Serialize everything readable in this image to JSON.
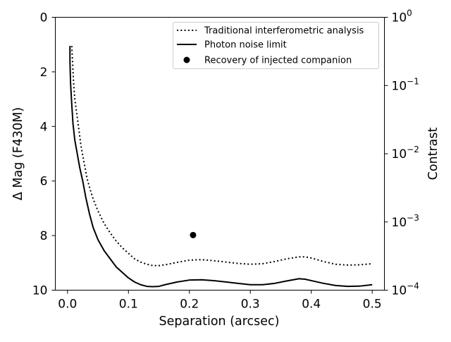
{
  "chart_data": {
    "type": "line",
    "xlabel": "Separation (arcsec)",
    "ylabel": "Δ Mag (F430M)",
    "ylabel_right": "Contrast",
    "xlim": [
      -0.02,
      0.52
    ],
    "ylim": [
      10,
      0
    ],
    "x_ticks": [
      0.0,
      0.1,
      0.2,
      0.3,
      0.4,
      0.5
    ],
    "x_tick_labels": [
      "0.0",
      "0.1",
      "0.2",
      "0.3",
      "0.4",
      "0.5"
    ],
    "y_ticks": [
      0,
      2,
      4,
      6,
      8,
      10
    ],
    "y_tick_labels": [
      "0",
      "2",
      "4",
      "6",
      "8",
      "10"
    ],
    "right_ticks": [
      {
        "value": 0,
        "base": "10",
        "exp": "0"
      },
      {
        "value": 2.5,
        "base": "10",
        "exp": "−1"
      },
      {
        "value": 5,
        "base": "10",
        "exp": "−2"
      },
      {
        "value": 7.5,
        "base": "10",
        "exp": "−3"
      },
      {
        "value": 10,
        "base": "10",
        "exp": "−4"
      }
    ],
    "legend_position": "upper right",
    "series": [
      {
        "name": "Traditional interferometric analysis",
        "style": "dotted",
        "color": "#000000",
        "points": [
          [
            0.007,
            1.05
          ],
          [
            0.008,
            1.5
          ],
          [
            0.01,
            2.4
          ],
          [
            0.012,
            3.0
          ],
          [
            0.015,
            3.5
          ],
          [
            0.018,
            4.0
          ],
          [
            0.022,
            4.7
          ],
          [
            0.027,
            5.3
          ],
          [
            0.032,
            5.9
          ],
          [
            0.037,
            6.3
          ],
          [
            0.042,
            6.65
          ],
          [
            0.05,
            7.1
          ],
          [
            0.06,
            7.55
          ],
          [
            0.07,
            7.9
          ],
          [
            0.08,
            8.2
          ],
          [
            0.09,
            8.45
          ],
          [
            0.1,
            8.65
          ],
          [
            0.11,
            8.85
          ],
          [
            0.12,
            8.97
          ],
          [
            0.13,
            9.05
          ],
          [
            0.14,
            9.1
          ],
          [
            0.15,
            9.1
          ],
          [
            0.16,
            9.07
          ],
          [
            0.18,
            8.98
          ],
          [
            0.2,
            8.9
          ],
          [
            0.22,
            8.88
          ],
          [
            0.24,
            8.92
          ],
          [
            0.26,
            8.97
          ],
          [
            0.28,
            9.02
          ],
          [
            0.3,
            9.05
          ],
          [
            0.32,
            9.03
          ],
          [
            0.34,
            8.95
          ],
          [
            0.36,
            8.85
          ],
          [
            0.38,
            8.78
          ],
          [
            0.39,
            8.78
          ],
          [
            0.4,
            8.82
          ],
          [
            0.42,
            8.95
          ],
          [
            0.44,
            9.05
          ],
          [
            0.46,
            9.08
          ],
          [
            0.48,
            9.07
          ],
          [
            0.5,
            9.03
          ]
        ]
      },
      {
        "name": "Photon noise limit",
        "style": "solid",
        "color": "#000000",
        "points": [
          [
            0.004,
            1.05
          ],
          [
            0.004,
            1.6
          ],
          [
            0.005,
            2.4
          ],
          [
            0.007,
            3.2
          ],
          [
            0.009,
            3.9
          ],
          [
            0.012,
            4.5
          ],
          [
            0.016,
            5.0
          ],
          [
            0.02,
            5.5
          ],
          [
            0.025,
            6.0
          ],
          [
            0.03,
            6.6
          ],
          [
            0.036,
            7.2
          ],
          [
            0.042,
            7.7
          ],
          [
            0.05,
            8.15
          ],
          [
            0.06,
            8.55
          ],
          [
            0.07,
            8.85
          ],
          [
            0.08,
            9.15
          ],
          [
            0.09,
            9.35
          ],
          [
            0.1,
            9.55
          ],
          [
            0.11,
            9.7
          ],
          [
            0.12,
            9.8
          ],
          [
            0.13,
            9.86
          ],
          [
            0.14,
            9.87
          ],
          [
            0.15,
            9.86
          ],
          [
            0.16,
            9.8
          ],
          [
            0.18,
            9.7
          ],
          [
            0.2,
            9.63
          ],
          [
            0.22,
            9.62
          ],
          [
            0.24,
            9.65
          ],
          [
            0.26,
            9.7
          ],
          [
            0.28,
            9.75
          ],
          [
            0.3,
            9.8
          ],
          [
            0.32,
            9.8
          ],
          [
            0.34,
            9.75
          ],
          [
            0.36,
            9.66
          ],
          [
            0.38,
            9.58
          ],
          [
            0.39,
            9.6
          ],
          [
            0.4,
            9.65
          ],
          [
            0.42,
            9.75
          ],
          [
            0.44,
            9.83
          ],
          [
            0.46,
            9.86
          ],
          [
            0.48,
            9.85
          ],
          [
            0.5,
            9.8
          ]
        ]
      },
      {
        "name": "Recovery of injected companion",
        "style": "marker",
        "color": "#000000",
        "points": [
          [
            0.206,
            7.98
          ]
        ]
      }
    ]
  }
}
